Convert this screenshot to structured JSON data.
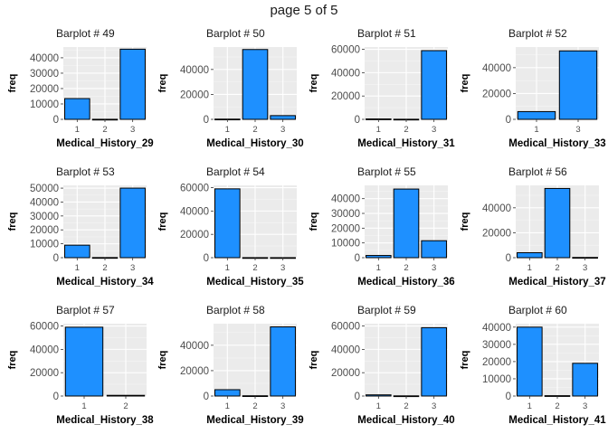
{
  "page_title": "page 5 of 5",
  "chart_data": [
    {
      "type": "bar",
      "title": "Barplot # 49",
      "xlabel": "Medical_History_29",
      "ylabel": "freq",
      "categories": [
        "1",
        "2",
        "3"
      ],
      "values": [
        13500,
        50,
        45600
      ],
      "ylim": [
        0,
        47000
      ],
      "yticks": [
        0,
        10000,
        20000,
        30000,
        40000
      ],
      "fill": "#1e90ff"
    },
    {
      "type": "bar",
      "title": "Barplot # 50",
      "xlabel": "Medical_History_30",
      "ylabel": "freq",
      "categories": [
        "1",
        "2",
        "3"
      ],
      "values": [
        200,
        56000,
        3000
      ],
      "ylim": [
        0,
        58000
      ],
      "yticks": [
        0,
        20000,
        40000
      ],
      "fill": "#1e90ff"
    },
    {
      "type": "bar",
      "title": "Barplot # 51",
      "xlabel": "Medical_History_31",
      "ylabel": "freq",
      "categories": [
        "1",
        "2",
        "3"
      ],
      "values": [
        350,
        100,
        58900
      ],
      "ylim": [
        0,
        62000
      ],
      "yticks": [
        0,
        20000,
        40000,
        60000
      ],
      "fill": "#1e90ff"
    },
    {
      "type": "bar",
      "title": "Barplot # 52",
      "xlabel": "Medical_History_33",
      "ylabel": "freq",
      "categories": [
        "1",
        "3"
      ],
      "values": [
        6000,
        53000
      ],
      "ylim": [
        0,
        56000
      ],
      "yticks": [
        0,
        20000,
        40000
      ],
      "fill": "#1e90ff"
    },
    {
      "type": "bar",
      "title": "Barplot # 53",
      "xlabel": "Medical_History_34",
      "ylabel": "freq",
      "categories": [
        "1",
        "2",
        "3"
      ],
      "values": [
        9000,
        100,
        50000
      ],
      "ylim": [
        0,
        52000
      ],
      "yticks": [
        0,
        10000,
        20000,
        30000,
        40000,
        50000
      ],
      "fill": "#1e90ff"
    },
    {
      "type": "bar",
      "title": "Barplot # 54",
      "xlabel": "Medical_History_35",
      "ylabel": "freq",
      "categories": [
        "1",
        "2",
        "3"
      ],
      "values": [
        59000,
        50,
        40
      ],
      "ylim": [
        0,
        62000
      ],
      "yticks": [
        0,
        20000,
        40000,
        60000
      ],
      "fill": "#1e90ff"
    },
    {
      "type": "bar",
      "title": "Barplot # 55",
      "xlabel": "Medical_History_36",
      "ylabel": "freq",
      "categories": [
        "1",
        "2",
        "3"
      ],
      "values": [
        1500,
        46500,
        11500
      ],
      "ylim": [
        0,
        49000
      ],
      "yticks": [
        0,
        10000,
        20000,
        30000,
        40000
      ],
      "fill": "#1e90ff"
    },
    {
      "type": "bar",
      "title": "Barplot # 56",
      "xlabel": "Medical_History_37",
      "ylabel": "freq",
      "categories": [
        "1",
        "2",
        "3"
      ],
      "values": [
        4000,
        55500,
        200
      ],
      "ylim": [
        0,
        58000
      ],
      "yticks": [
        0,
        20000,
        40000
      ],
      "fill": "#1e90ff"
    },
    {
      "type": "bar",
      "title": "Barplot # 57",
      "xlabel": "Medical_History_38",
      "ylabel": "freq",
      "categories": [
        "1",
        "2"
      ],
      "values": [
        59000,
        600
      ],
      "ylim": [
        0,
        62000
      ],
      "yticks": [
        0,
        20000,
        40000,
        60000
      ],
      "fill": "#1e90ff"
    },
    {
      "type": "bar",
      "title": "Barplot # 58",
      "xlabel": "Medical_History_39",
      "ylabel": "freq",
      "categories": [
        "1",
        "2",
        "3"
      ],
      "values": [
        5000,
        200,
        54500
      ],
      "ylim": [
        0,
        57000
      ],
      "yticks": [
        0,
        20000,
        40000
      ],
      "fill": "#1e90ff"
    },
    {
      "type": "bar",
      "title": "Barplot # 59",
      "xlabel": "Medical_History_40",
      "ylabel": "freq",
      "categories": [
        "1",
        "2",
        "3"
      ],
      "values": [
        1000,
        150,
        58600
      ],
      "ylim": [
        0,
        62000
      ],
      "yticks": [
        0,
        20000,
        40000,
        60000
      ],
      "fill": "#1e90ff"
    },
    {
      "type": "bar",
      "title": "Barplot # 60",
      "xlabel": "Medical_History_41",
      "ylabel": "freq",
      "categories": [
        "1",
        "2",
        "3"
      ],
      "values": [
        40000,
        200,
        19000
      ],
      "ylim": [
        0,
        42000
      ],
      "yticks": [
        0,
        10000,
        20000,
        30000,
        40000
      ],
      "fill": "#1e90ff"
    }
  ]
}
